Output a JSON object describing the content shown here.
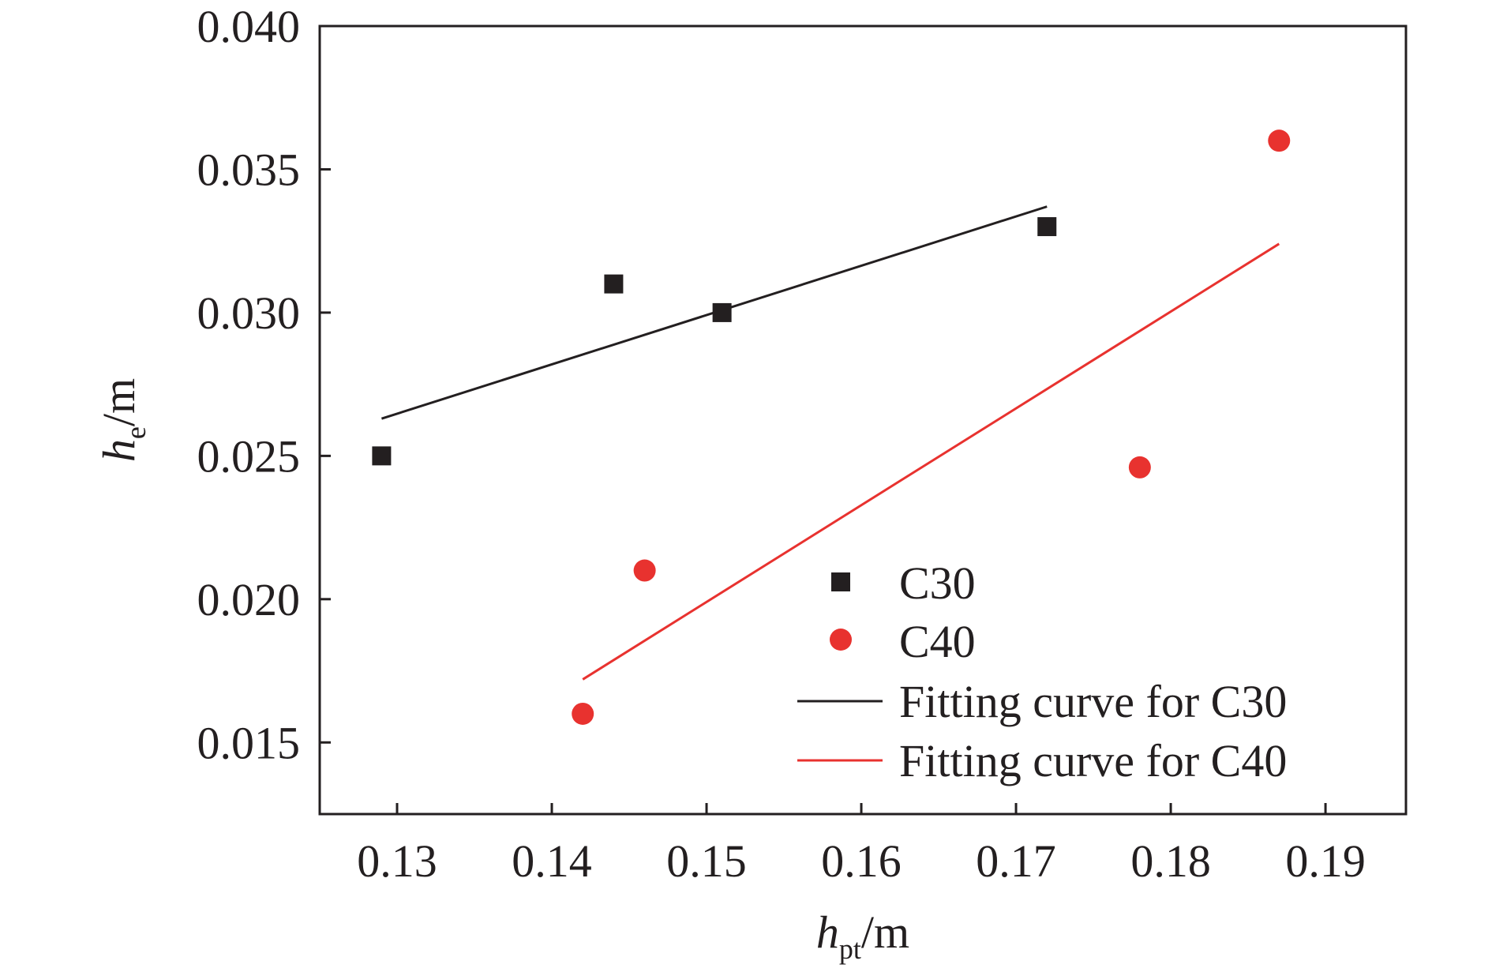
{
  "chart_data": {
    "type": "scatter",
    "xlabel": {
      "main": "h",
      "sub": "pt",
      "unit": "/m"
    },
    "ylabel": {
      "main": "h",
      "sub": "e",
      "unit": "/m"
    },
    "xlim": [
      0.125,
      0.1952
    ],
    "ylim": [
      0.0125,
      0.04
    ],
    "x_ticks": [
      0.13,
      0.14,
      0.15,
      0.16,
      0.17,
      0.18,
      0.19
    ],
    "x_tick_labels": [
      "0.13",
      "0.14",
      "0.15",
      "0.16",
      "0.17",
      "0.18",
      "0.19"
    ],
    "y_ticks": [
      0.015,
      0.02,
      0.025,
      0.03,
      0.035,
      0.04
    ],
    "y_tick_labels": [
      "0.015",
      "0.020",
      "0.025",
      "0.030",
      "0.035",
      "0.040"
    ],
    "grid": false,
    "legend_position": "bottom-right",
    "series": [
      {
        "name": "C30",
        "marker": "square",
        "color": "#231f20",
        "points": [
          [
            0.129,
            0.025
          ],
          [
            0.144,
            0.031
          ],
          [
            0.151,
            0.03
          ],
          [
            0.172,
            0.033
          ]
        ]
      },
      {
        "name": "C40",
        "marker": "circle",
        "color": "#e8322f",
        "points": [
          [
            0.142,
            0.016
          ],
          [
            0.146,
            0.021
          ],
          [
            0.178,
            0.0246
          ],
          [
            0.187,
            0.036
          ]
        ]
      }
    ],
    "fits": [
      {
        "name": "Fitting curve for C30",
        "color": "#231f20",
        "x": [
          0.129,
          0.172
        ],
        "y": [
          0.0263,
          0.0337
        ]
      },
      {
        "name": "Fitting curve for C40",
        "color": "#e8322f",
        "x": [
          0.142,
          0.187
        ],
        "y": [
          0.0172,
          0.0324
        ]
      }
    ]
  }
}
